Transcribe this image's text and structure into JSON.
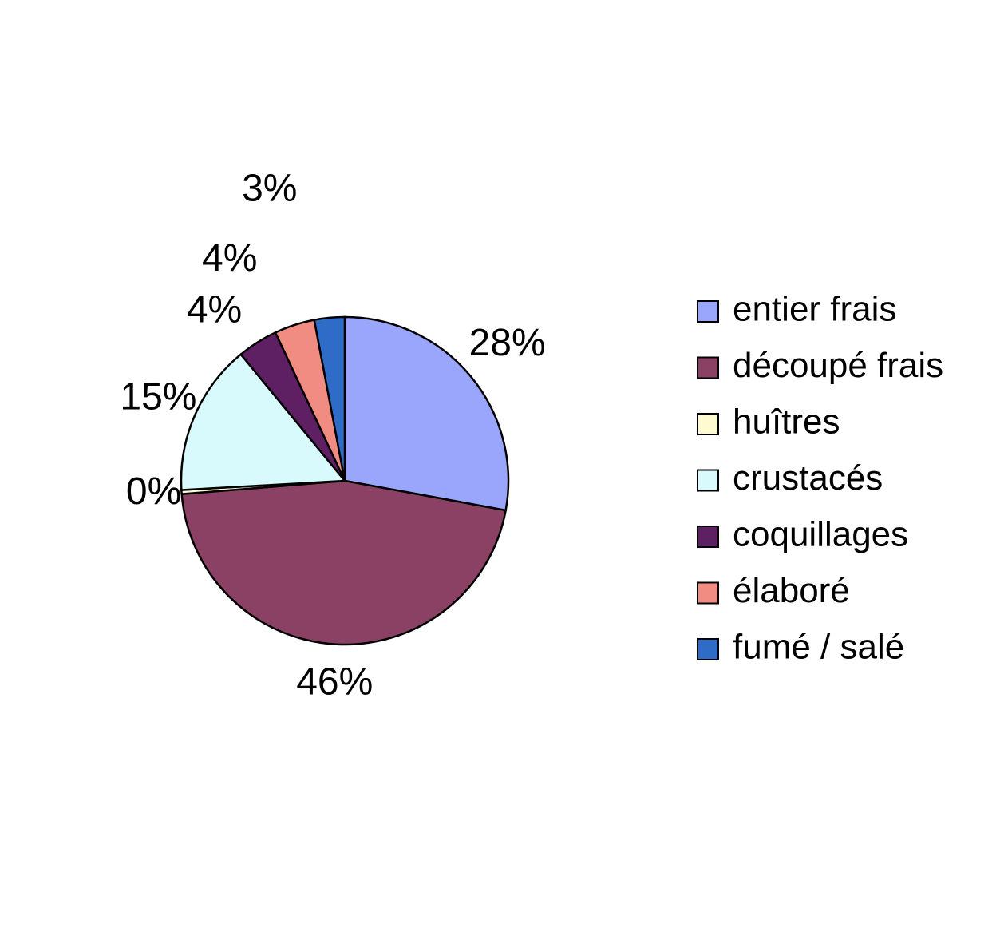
{
  "chart_data": {
    "type": "pie",
    "categories": [
      "entier frais",
      "découpé frais",
      "huîtres",
      "crustacés",
      "coquillages",
      "élaboré",
      "fumé / salé"
    ],
    "values": [
      28,
      46,
      0.4,
      15,
      4,
      4,
      3
    ],
    "value_labels": [
      "28%",
      "46%",
      "0%",
      "15%",
      "4%",
      "4%",
      "3%"
    ],
    "colors": [
      "#9aa6fc",
      "#8b4163",
      "#fffbd0",
      "#d8fafc",
      "#5e1f63",
      "#f08c82",
      "#2e6cc8"
    ],
    "legend": "right"
  }
}
